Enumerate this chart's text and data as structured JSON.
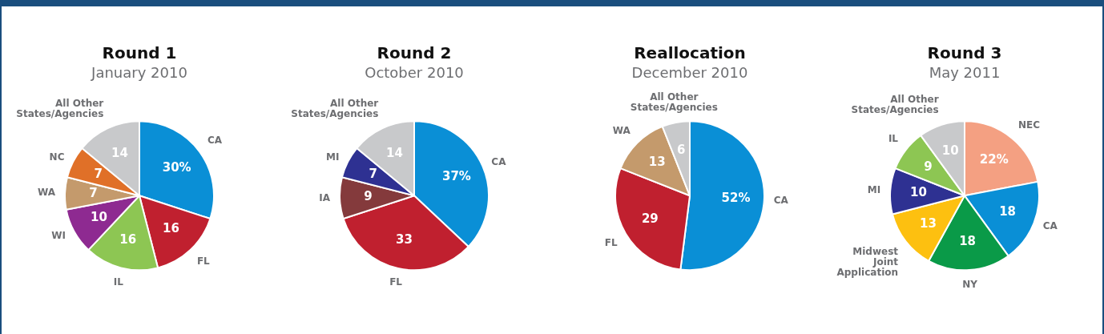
{
  "chart_data": [
    {
      "type": "pie",
      "title": "Round 1",
      "subtitle": "January 2010",
      "categories": [
        "CA",
        "FL",
        "IL",
        "WI",
        "WA",
        "NC",
        "All Other States/Agencies"
      ],
      "values": [
        30,
        16,
        16,
        10,
        7,
        7,
        14
      ],
      "value_labels": [
        "30%",
        "16",
        "16",
        "10",
        "7",
        "7",
        "14"
      ],
      "colors": [
        "#0a8fd6",
        "#c0202f",
        "#8dc653",
        "#8e2a91",
        "#c49a6c",
        "#e07028",
        "#c8c9cb"
      ]
    },
    {
      "type": "pie",
      "title": "Round 2",
      "subtitle": "October 2010",
      "categories": [
        "CA",
        "FL",
        "IA",
        "MI",
        "All Other States/Agencies"
      ],
      "values": [
        37,
        33,
        9,
        7,
        14
      ],
      "value_labels": [
        "37%",
        "33",
        "9",
        "7",
        "14"
      ],
      "colors": [
        "#0a8fd6",
        "#c0202f",
        "#843a3c",
        "#2e3192",
        "#c8c9cb"
      ]
    },
    {
      "type": "pie",
      "title": "Reallocation",
      "subtitle": "December 2010",
      "categories": [
        "CA",
        "FL",
        "WA",
        "All Other States/Agencies"
      ],
      "values": [
        52,
        29,
        13,
        6
      ],
      "value_labels": [
        "52%",
        "29",
        "13",
        "6"
      ],
      "colors": [
        "#0a8fd6",
        "#c0202f",
        "#c49a6c",
        "#c8c9cb"
      ]
    },
    {
      "type": "pie",
      "title": "Round 3",
      "subtitle": "May 2011",
      "categories": [
        "NEC",
        "CA",
        "NY",
        "Midwest Joint Application",
        "MI",
        "IL",
        "All Other States/Agencies"
      ],
      "values": [
        22,
        18,
        18,
        13,
        10,
        9,
        10
      ],
      "value_labels": [
        "22%",
        "18",
        "18",
        "13",
        "10",
        "9",
        "10"
      ],
      "colors": [
        "#f4a082",
        "#0a8fd6",
        "#0a9a48",
        "#fdc010",
        "#2e3192",
        "#8dc653",
        "#c8c9cb"
      ]
    }
  ]
}
